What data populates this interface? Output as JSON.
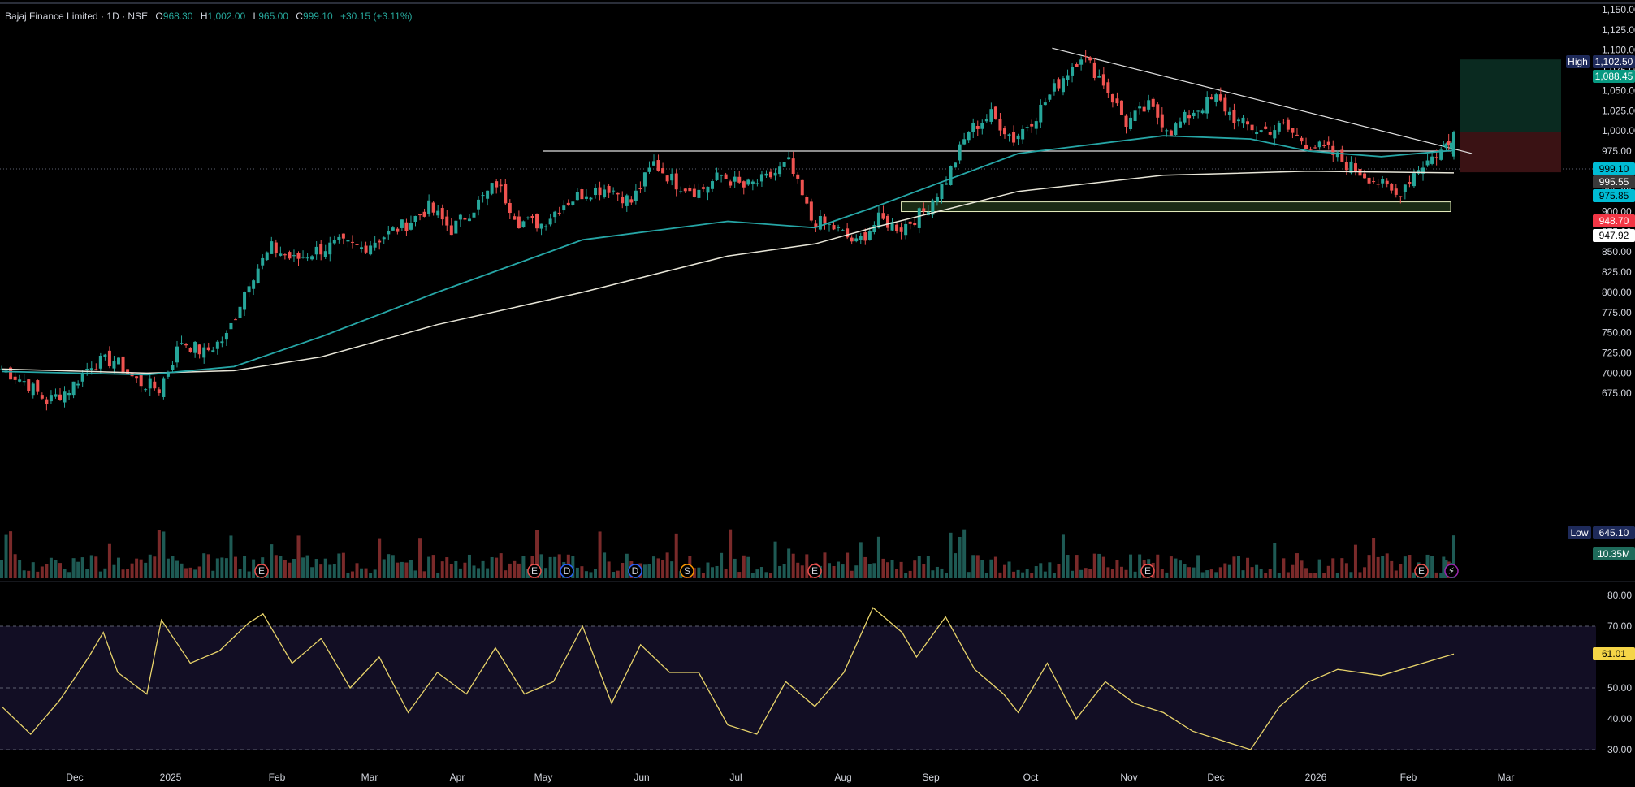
{
  "header": {
    "title": "Bajaj Finance Limited · 1D · NSE",
    "open_label": "O",
    "open": "968.30",
    "high_label": "H",
    "high": "1,002.00",
    "low_label": "L",
    "low": "965.00",
    "close_label": "C",
    "close": "999.10",
    "change": "+30.15 (+3.11%)"
  },
  "colors": {
    "background": "#000000",
    "up": "#26a69a",
    "down": "#ef5350",
    "ema_fast": "#26a6a6",
    "ema_slow": "#e8e6d8",
    "rsi": "#e8d36a",
    "rsi_band": "#120e24",
    "trendline": "#e0e0e0",
    "target_zone": "#0a2a20",
    "stop_zone": "#3a1214",
    "demand_zone": "#1a2a14"
  },
  "price_axis": {
    "labels": [
      "1,150.00",
      "1,125.00",
      "1,100.00",
      "1,075.00",
      "1,050.00",
      "1,025.00",
      "1,000.00",
      "975.00",
      "950.00",
      "925.00",
      "900.00",
      "875.00",
      "850.00",
      "825.00",
      "800.00",
      "775.00",
      "750.00",
      "725.00",
      "700.00",
      "675.00"
    ],
    "ticks": [
      1150,
      1125,
      1100,
      1075,
      1050,
      1025,
      1000,
      975,
      950,
      925,
      900,
      875,
      850,
      825,
      800,
      775,
      750,
      725,
      700,
      675
    ]
  },
  "badges": {
    "high_tag": "High",
    "high_value": "1,102.50",
    "target": "1,088.45",
    "last": "999.10",
    "ema_slow_value": "995.55",
    "ema_fast_value": "975.85",
    "stop": "948.70",
    "ema_long_value": "947.92",
    "low_tag": "Low",
    "low_value": "645.10",
    "volume": "10.35M",
    "rsi_value": "61.01"
  },
  "rsi_axis": {
    "labels": [
      "80.00",
      "70.00",
      "60.00",
      "50.00",
      "40.00",
      "30.00"
    ],
    "ticks": [
      80,
      70,
      60,
      50,
      40,
      30
    ]
  },
  "time_axis": {
    "labels": [
      "Dec",
      "2025",
      "Feb",
      "Mar",
      "Apr",
      "May",
      "Jun",
      "Jul",
      "Aug",
      "Sep",
      "Oct",
      "Nov",
      "Dec",
      "2026",
      "Feb",
      "Mar"
    ]
  },
  "event_markers": [
    {
      "kind": "E",
      "label": "E"
    },
    {
      "kind": "E",
      "label": "E"
    },
    {
      "kind": "D",
      "label": "D"
    },
    {
      "kind": "D",
      "label": "D"
    },
    {
      "kind": "S",
      "label": "S"
    },
    {
      "kind": "E",
      "label": "E"
    },
    {
      "kind": "E",
      "label": "E"
    },
    {
      "kind": "E",
      "label": "E"
    },
    {
      "kind": "flash",
      "label": "⚡"
    }
  ],
  "chart_data": {
    "type": "candlestick",
    "symbol": "Bajaj Finance Limited",
    "interval": "1D",
    "exchange": "NSE",
    "x_range": [
      "2024-11-18",
      "2026-02-13"
    ],
    "ylim": [
      640,
      1150
    ],
    "rsi_ylim": [
      28,
      82
    ],
    "anchors": [
      {
        "date": "2024-11-18",
        "close": 705
      },
      {
        "date": "2024-11-25",
        "close": 690
      },
      {
        "date": "2024-12-02",
        "close": 665
      },
      {
        "date": "2024-12-09",
        "close": 680
      },
      {
        "date": "2024-12-16",
        "close": 712
      },
      {
        "date": "2024-12-23",
        "close": 716
      },
      {
        "date": "2024-12-30",
        "close": 690
      },
      {
        "date": "2025-01-06",
        "close": 680
      },
      {
        "date": "2025-01-13",
        "close": 740
      },
      {
        "date": "2025-01-20",
        "close": 725
      },
      {
        "date": "2025-01-27",
        "close": 745
      },
      {
        "date": "2025-02-03",
        "close": 815
      },
      {
        "date": "2025-02-10",
        "close": 855
      },
      {
        "date": "2025-02-17",
        "close": 840
      },
      {
        "date": "2025-02-24",
        "close": 852
      },
      {
        "date": "2025-03-03",
        "close": 860
      },
      {
        "date": "2025-03-10",
        "close": 855
      },
      {
        "date": "2025-03-17",
        "close": 870
      },
      {
        "date": "2025-03-24",
        "close": 885
      },
      {
        "date": "2025-03-31",
        "close": 905
      },
      {
        "date": "2025-04-07",
        "close": 878
      },
      {
        "date": "2025-04-14",
        "close": 905
      },
      {
        "date": "2025-04-21",
        "close": 935
      },
      {
        "date": "2025-04-28",
        "close": 888
      },
      {
        "date": "2025-05-05",
        "close": 885
      },
      {
        "date": "2025-05-12",
        "close": 910
      },
      {
        "date": "2025-05-19",
        "close": 925
      },
      {
        "date": "2025-05-26",
        "close": 930
      },
      {
        "date": "2025-06-02",
        "close": 912
      },
      {
        "date": "2025-06-09",
        "close": 960
      },
      {
        "date": "2025-06-16",
        "close": 935
      },
      {
        "date": "2025-06-23",
        "close": 925
      },
      {
        "date": "2025-06-30",
        "close": 945
      },
      {
        "date": "2025-07-07",
        "close": 930
      },
      {
        "date": "2025-07-14",
        "close": 940
      },
      {
        "date": "2025-07-21",
        "close": 960
      },
      {
        "date": "2025-07-28",
        "close": 890
      },
      {
        "date": "2025-08-04",
        "close": 880
      },
      {
        "date": "2025-08-11",
        "close": 860
      },
      {
        "date": "2025-08-18",
        "close": 890
      },
      {
        "date": "2025-08-25",
        "close": 880
      },
      {
        "date": "2025-09-01",
        "close": 900
      },
      {
        "date": "2025-09-08",
        "close": 940
      },
      {
        "date": "2025-09-15",
        "close": 1000
      },
      {
        "date": "2025-09-22",
        "close": 1020
      },
      {
        "date": "2025-09-29",
        "close": 990
      },
      {
        "date": "2025-10-06",
        "close": 1020
      },
      {
        "date": "2025-10-13",
        "close": 1060
      },
      {
        "date": "2025-10-20",
        "close": 1095
      },
      {
        "date": "2025-10-27",
        "close": 1060
      },
      {
        "date": "2025-11-03",
        "close": 1010
      },
      {
        "date": "2025-11-10",
        "close": 1030
      },
      {
        "date": "2025-11-17",
        "close": 1000
      },
      {
        "date": "2025-11-24",
        "close": 1025
      },
      {
        "date": "2025-12-01",
        "close": 1040
      },
      {
        "date": "2025-12-08",
        "close": 1010
      },
      {
        "date": "2025-12-15",
        "close": 1000
      },
      {
        "date": "2025-12-22",
        "close": 1005
      },
      {
        "date": "2025-12-29",
        "close": 985
      },
      {
        "date": "2026-01-05",
        "close": 975
      },
      {
        "date": "2026-01-12",
        "close": 955
      },
      {
        "date": "2026-01-19",
        "close": 940
      },
      {
        "date": "2026-01-26",
        "close": 920
      },
      {
        "date": "2026-02-02",
        "close": 955
      },
      {
        "date": "2026-02-09",
        "close": 975
      },
      {
        "date": "2026-02-13",
        "close": 999.1
      }
    ],
    "ema_fast": [
      [
        0,
        702
      ],
      [
        0.1,
        698
      ],
      [
        0.16,
        708
      ],
      [
        0.22,
        745
      ],
      [
        0.3,
        800
      ],
      [
        0.4,
        865
      ],
      [
        0.5,
        888
      ],
      [
        0.56,
        880
      ],
      [
        0.6,
        905
      ],
      [
        0.7,
        972
      ],
      [
        0.8,
        994
      ],
      [
        0.86,
        990
      ],
      [
        0.9,
        975
      ],
      [
        0.95,
        968
      ],
      [
        1,
        975.85
      ]
    ],
    "ema_slow": [
      [
        0,
        705
      ],
      [
        0.1,
        700
      ],
      [
        0.16,
        703
      ],
      [
        0.22,
        720
      ],
      [
        0.3,
        760
      ],
      [
        0.4,
        800
      ],
      [
        0.5,
        845
      ],
      [
        0.56,
        860
      ],
      [
        0.6,
        880
      ],
      [
        0.7,
        925
      ],
      [
        0.8,
        945
      ],
      [
        0.9,
        950
      ],
      [
        1,
        947.92
      ]
    ],
    "rsi_points": [
      [
        0,
        44
      ],
      [
        0.02,
        35
      ],
      [
        0.04,
        46
      ],
      [
        0.06,
        60
      ],
      [
        0.07,
        68
      ],
      [
        0.08,
        55
      ],
      [
        0.1,
        48
      ],
      [
        0.11,
        72
      ],
      [
        0.13,
        58
      ],
      [
        0.15,
        62
      ],
      [
        0.17,
        71
      ],
      [
        0.18,
        74
      ],
      [
        0.2,
        58
      ],
      [
        0.22,
        66
      ],
      [
        0.24,
        50
      ],
      [
        0.26,
        60
      ],
      [
        0.28,
        42
      ],
      [
        0.3,
        55
      ],
      [
        0.32,
        48
      ],
      [
        0.34,
        63
      ],
      [
        0.36,
        48
      ],
      [
        0.38,
        52
      ],
      [
        0.4,
        70
      ],
      [
        0.42,
        45
      ],
      [
        0.44,
        64
      ],
      [
        0.46,
        55
      ],
      [
        0.48,
        55
      ],
      [
        0.5,
        38
      ],
      [
        0.52,
        35
      ],
      [
        0.54,
        52
      ],
      [
        0.56,
        44
      ],
      [
        0.58,
        55
      ],
      [
        0.6,
        76
      ],
      [
        0.62,
        68
      ],
      [
        0.63,
        60
      ],
      [
        0.65,
        73
      ],
      [
        0.67,
        56
      ],
      [
        0.69,
        48
      ],
      [
        0.7,
        42
      ],
      [
        0.72,
        58
      ],
      [
        0.74,
        40
      ],
      [
        0.76,
        52
      ],
      [
        0.78,
        45
      ],
      [
        0.8,
        42
      ],
      [
        0.82,
        36
      ],
      [
        0.84,
        33
      ],
      [
        0.86,
        30
      ],
      [
        0.88,
        44
      ],
      [
        0.9,
        52
      ],
      [
        0.92,
        56
      ],
      [
        0.95,
        54
      ],
      [
        1,
        61.01
      ]
    ],
    "horizontal_levels": [
      {
        "price": 975
      }
    ],
    "trendline": [
      {
        "date": "2025-10-13",
        "price": 1102.5
      },
      {
        "date": "2026-02-13",
        "price": 970
      }
    ],
    "demand_zone": {
      "from": "2025-08-25",
      "to": "2026-02-12",
      "top": 912,
      "bottom": 900
    },
    "position": {
      "entry": 999.1,
      "target": 1088.45,
      "stop": 948.7
    }
  }
}
